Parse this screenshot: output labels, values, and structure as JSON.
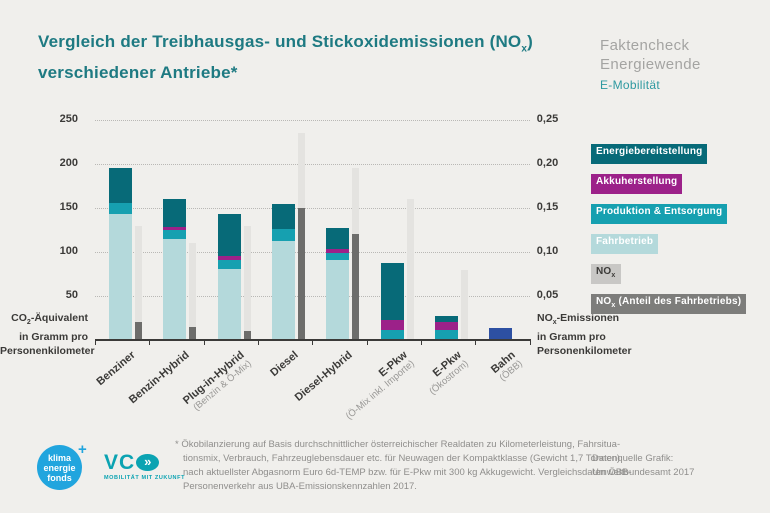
{
  "title": {
    "line1_pre": "Vergleich der Treibhausgas- und Stickoxidemissionen (NO",
    "line1_sub": "x",
    "line1_post": ")",
    "line2": "verschiedener Antriebe*"
  },
  "brand": {
    "line1": "Faktencheck",
    "line2": "Energiewende",
    "line3": "E-Mobilität"
  },
  "legend": {
    "items": [
      {
        "key": "energie",
        "pre": "Energiebereitstellung",
        "sub": "",
        "post": ""
      },
      {
        "key": "akku",
        "pre": "Akkuherstellung",
        "sub": "",
        "post": ""
      },
      {
        "key": "produktion",
        "pre": "Produktion & Entsorgung",
        "sub": "",
        "post": ""
      },
      {
        "key": "fahrbetrieb",
        "pre": "Fahrbetrieb",
        "sub": "",
        "post": ""
      },
      {
        "key": "nox_chip",
        "pre": "NO",
        "sub": "x",
        "post": ""
      },
      {
        "key": "nox_anteil_chip",
        "pre": "NO",
        "sub": "x",
        "post": " (Anteil des Fahrbetriebs)"
      }
    ]
  },
  "left_axis_caption": {
    "pre": "CO",
    "sub": "2",
    "post": "-Äquivalent",
    "line2": "in Gramm pro",
    "line3": "Personenkilometer"
  },
  "right_axis_caption": {
    "pre": "NO",
    "sub": "x",
    "post": "-Emissionen",
    "line2": "in Gramm pro",
    "line3": "Personenkilometer"
  },
  "footnote": {
    "lines": [
      "* Ökobilanzierung auf Basis durchschnittlicher österreichischer Realdaten zu Kilometerleistung, Fahrsitua-",
      "tionsmix, Verbrauch, Fahrzeuglebensdauer etc. für Neuwagen der Kompaktklasse (Gewicht 1,7 Tonnen)",
      "nach aktuellster Abgasnorm Euro 6d-TEMP bzw. für E-Pkw mit 300 kg Akkugewicht. Vergleichsdaten ÖBB-",
      "Personenverkehr aus UBA-Emissionskennzahlen 2017."
    ]
  },
  "source": {
    "line1": "Datenquelle Grafik:",
    "line2": "Umweltbundesamt 2017"
  },
  "logos": {
    "klima": {
      "lines": [
        "klima",
        "energie",
        "fonds"
      ],
      "plus": "+"
    },
    "vco": {
      "text": "VC",
      "chevrons": "»",
      "tagline": "MOBILITÄT MIT ZUKUNFT"
    }
  },
  "colors": {
    "background": "#f0efec",
    "title_teal": "#1e7a82",
    "brand_gray": "#a4a4a2",
    "brand_teal": "#2e99a0",
    "axis_text": "#3b3a38",
    "grid": "#b9b8b5",
    "energie": "#076a78",
    "akku": "#9c2189",
    "produktion": "#16a0b0",
    "fahrbetrieb": "#b4d9db",
    "nox": "#e4e3e0",
    "nox_anteil": "#6d6d6b",
    "bahn": "#2d50a2",
    "nox_chip": "#c8c7c5",
    "nox_anteil_chip": "#7d7d7b",
    "footnote_gray": "#8f8e8c",
    "klima_blue": "#21a5de",
    "vco_teal": "#0ba3b2"
  },
  "chart_data": {
    "type": "bar",
    "title": "Vergleich der Treibhausgas- und Stickoxidemissionen (NOx) verschiedener Antriebe*",
    "categories": [
      "Benziner",
      "Benzin-Hybrid",
      "Plug-in-Hybrid",
      "Diesel",
      "Diesel-Hybrid",
      "E-Pkw",
      "E-Pkw",
      "Bahn"
    ],
    "sublabels": [
      "",
      "",
      "(Benzin & Ö-Mix)",
      "",
      "",
      "(Ö-Mix inkl. Importe)",
      "(Ökostrom)",
      "(ÖBB)"
    ],
    "co2_stack_order": [
      "fahrbetrieb",
      "produktion",
      "akku",
      "energie",
      "bahn"
    ],
    "series": [
      {
        "name": "Fahrbetrieb",
        "key": "fahrbetrieb",
        "values": [
          143,
          115,
          81,
          113,
          91,
          0,
          0,
          0
        ]
      },
      {
        "name": "Produktion & Entsorgung",
        "key": "produktion",
        "values": [
          13,
          10,
          10,
          13,
          8,
          11,
          11,
          0
        ]
      },
      {
        "name": "Akkuherstellung",
        "key": "akku",
        "values": [
          0,
          3,
          4,
          0,
          4,
          12,
          10,
          0
        ]
      },
      {
        "name": "Energiebereitstellung",
        "key": "energie",
        "values": [
          39,
          32,
          48,
          29,
          24,
          65,
          6,
          0
        ]
      },
      {
        "name": "Bahn gesamt",
        "key": "bahn",
        "values": [
          0,
          0,
          0,
          0,
          0,
          0,
          0,
          14
        ]
      }
    ],
    "co2_totals": [
      195,
      160,
      143,
      155,
      127,
      88,
      27,
      14
    ],
    "nox_series": [
      {
        "name": "NOx",
        "key": "nox",
        "values": [
          0.13,
          0.11,
          0.13,
          0.235,
          0.195,
          0.16,
          0.08,
          0
        ]
      },
      {
        "name": "NOx (Anteil des Fahrbetriebs)",
        "key": "nox_anteil",
        "values": [
          0.02,
          0.015,
          0.01,
          0.15,
          0.12,
          0,
          0,
          0
        ]
      }
    ],
    "left_ticks": [
      50,
      100,
      150,
      200,
      250
    ],
    "right_ticks": [
      "0,05",
      "0,10",
      "0,15",
      "0,20",
      "0,25"
    ],
    "left_max": 250,
    "right_max": 0.25,
    "left_axis_label": "CO2-Äquivalent in Gramm pro Personenkilometer",
    "right_axis_label": "NOx-Emissionen in Gramm pro Personenkilometer",
    "grid": true,
    "legend_position": "right"
  }
}
